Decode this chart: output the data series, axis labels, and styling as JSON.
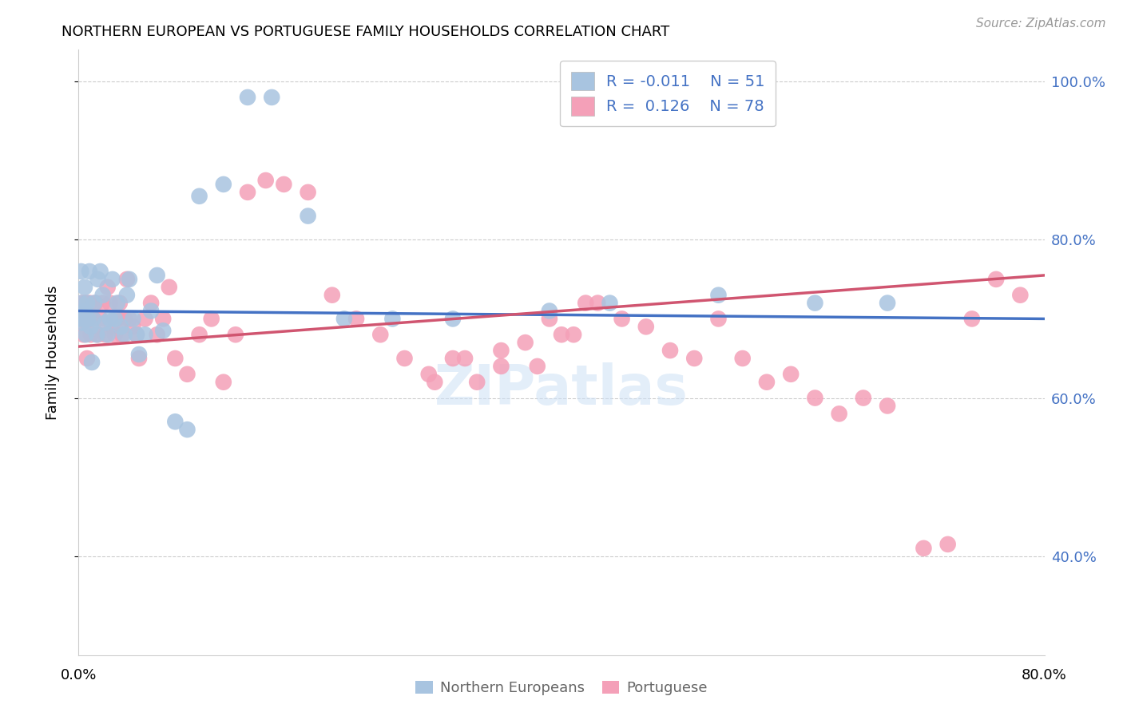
{
  "title": "NORTHERN EUROPEAN VS PORTUGUESE FAMILY HOUSEHOLDS CORRELATION CHART",
  "source": "Source: ZipAtlas.com",
  "ylabel": "Family Households",
  "xlim": [
    0,
    0.8
  ],
  "ylim": [
    0.275,
    1.04
  ],
  "yticks": [
    0.4,
    0.6,
    0.8,
    1.0
  ],
  "ytick_labels": [
    "40.0%",
    "60.0%",
    "80.0%",
    "100.0%"
  ],
  "xticks": [
    0.0,
    0.1,
    0.2,
    0.3,
    0.4,
    0.5,
    0.6,
    0.7,
    0.8
  ],
  "xtick_labels": [
    "0.0%",
    "",
    "",
    "",
    "",
    "",
    "",
    "",
    "80.0%"
  ],
  "blue_color": "#a8c4e0",
  "pink_color": "#f4a0b8",
  "blue_line_color": "#4472c4",
  "pink_line_color": "#d05570",
  "blue_R": -0.011,
  "pink_R": 0.126,
  "blue_N": 51,
  "pink_N": 78,
  "blue_x": [
    0.001,
    0.002,
    0.002,
    0.003,
    0.004,
    0.005,
    0.005,
    0.006,
    0.007,
    0.008,
    0.009,
    0.01,
    0.011,
    0.012,
    0.013,
    0.015,
    0.016,
    0.018,
    0.02,
    0.022,
    0.024,
    0.026,
    0.028,
    0.03,
    0.032,
    0.035,
    0.038,
    0.04,
    0.042,
    0.045,
    0.048,
    0.05,
    0.055,
    0.06,
    0.065,
    0.07,
    0.08,
    0.09,
    0.1,
    0.12,
    0.14,
    0.16,
    0.19,
    0.22,
    0.26,
    0.31,
    0.39,
    0.44,
    0.53,
    0.61,
    0.67
  ],
  "blue_y": [
    0.7,
    0.72,
    0.76,
    0.695,
    0.7,
    0.71,
    0.74,
    0.68,
    0.72,
    0.7,
    0.76,
    0.69,
    0.645,
    0.7,
    0.72,
    0.68,
    0.75,
    0.76,
    0.73,
    0.695,
    0.68,
    0.7,
    0.75,
    0.7,
    0.72,
    0.69,
    0.68,
    0.73,
    0.75,
    0.7,
    0.68,
    0.655,
    0.68,
    0.71,
    0.755,
    0.685,
    0.57,
    0.56,
    0.855,
    0.87,
    0.98,
    0.98,
    0.83,
    0.7,
    0.7,
    0.7,
    0.71,
    0.72,
    0.73,
    0.72,
    0.72
  ],
  "pink_x": [
    0.001,
    0.003,
    0.004,
    0.005,
    0.006,
    0.007,
    0.008,
    0.009,
    0.01,
    0.012,
    0.014,
    0.016,
    0.018,
    0.02,
    0.022,
    0.024,
    0.026,
    0.028,
    0.03,
    0.032,
    0.034,
    0.036,
    0.038,
    0.04,
    0.042,
    0.045,
    0.048,
    0.05,
    0.055,
    0.06,
    0.065,
    0.07,
    0.075,
    0.08,
    0.09,
    0.1,
    0.11,
    0.12,
    0.13,
    0.14,
    0.155,
    0.17,
    0.19,
    0.21,
    0.23,
    0.25,
    0.27,
    0.29,
    0.31,
    0.33,
    0.35,
    0.37,
    0.39,
    0.41,
    0.43,
    0.45,
    0.47,
    0.49,
    0.51,
    0.53,
    0.55,
    0.57,
    0.59,
    0.61,
    0.63,
    0.65,
    0.67,
    0.7,
    0.72,
    0.74,
    0.76,
    0.78,
    0.295,
    0.32,
    0.35,
    0.38,
    0.4,
    0.42
  ],
  "pink_y": [
    0.7,
    0.72,
    0.68,
    0.7,
    0.72,
    0.65,
    0.7,
    0.72,
    0.68,
    0.7,
    0.72,
    0.68,
    0.7,
    0.72,
    0.68,
    0.74,
    0.72,
    0.69,
    0.68,
    0.7,
    0.72,
    0.68,
    0.7,
    0.75,
    0.7,
    0.69,
    0.68,
    0.65,
    0.7,
    0.72,
    0.68,
    0.7,
    0.74,
    0.65,
    0.63,
    0.68,
    0.7,
    0.62,
    0.68,
    0.86,
    0.875,
    0.87,
    0.86,
    0.73,
    0.7,
    0.68,
    0.65,
    0.63,
    0.65,
    0.62,
    0.64,
    0.67,
    0.7,
    0.68,
    0.72,
    0.7,
    0.69,
    0.66,
    0.65,
    0.7,
    0.65,
    0.62,
    0.63,
    0.6,
    0.58,
    0.6,
    0.59,
    0.41,
    0.415,
    0.7,
    0.75,
    0.73,
    0.62,
    0.65,
    0.66,
    0.64,
    0.68,
    0.72
  ],
  "watermark": "ZIPatlas"
}
